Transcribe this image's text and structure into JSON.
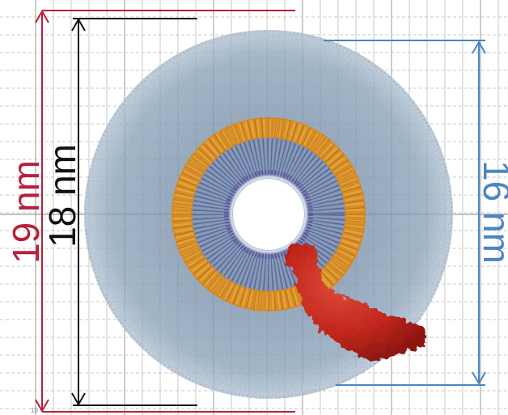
{
  "figure": {
    "colors": {
      "red_dimension": "#b8203a",
      "black_dimension": "#111111",
      "blue_dimension": "#4a86c0",
      "grid_major": "#9a9a9a",
      "grid_minor": "#c8c8c8",
      "outer_shell": "#6f8fa6",
      "orange_ring": "#d98a1c",
      "inner_ring": "#5a6aa8",
      "protein": "#c0261c"
    },
    "labels": {
      "red": "19 nm",
      "black": "18 nm",
      "blue": "16 nm"
    },
    "corner_tick_label": "10"
  }
}
